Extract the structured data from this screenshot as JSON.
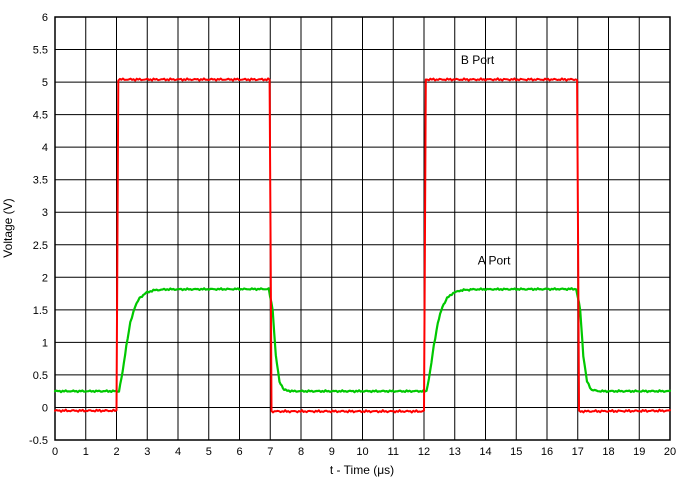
{
  "figure": {
    "background": "#ffffff",
    "text_color": "#000000"
  },
  "chart_data": {
    "type": "line",
    "title": "",
    "xlabel": "t - Time (μs)",
    "ylabel": "Voltage (V)",
    "xlim": [
      0,
      20
    ],
    "ylim": [
      -0.5,
      6
    ],
    "xtick_step": 1,
    "ytick_step": 0.5,
    "grid": true,
    "grid_color": "#000000",
    "frame_color": "#000000",
    "legend_position": "none",
    "series": [
      {
        "name": "A Port",
        "color": "#00c800",
        "width": 2.2,
        "noise": 0.012,
        "high_level": 1.82,
        "low_level": 0.25,
        "points": [
          [
            0,
            0.25
          ],
          [
            2.08,
            0.25
          ],
          [
            2.2,
            0.55
          ],
          [
            2.32,
            0.95
          ],
          [
            2.45,
            1.3
          ],
          [
            2.6,
            1.55
          ],
          [
            2.75,
            1.68
          ],
          [
            2.95,
            1.76
          ],
          [
            3.2,
            1.8
          ],
          [
            3.6,
            1.815
          ],
          [
            6.95,
            1.82
          ],
          [
            7.08,
            1.5
          ],
          [
            7.18,
            0.8
          ],
          [
            7.3,
            0.4
          ],
          [
            7.45,
            0.27
          ],
          [
            7.7,
            0.25
          ],
          [
            12.08,
            0.25
          ],
          [
            12.2,
            0.55
          ],
          [
            12.32,
            0.95
          ],
          [
            12.45,
            1.3
          ],
          [
            12.6,
            1.55
          ],
          [
            12.75,
            1.68
          ],
          [
            12.95,
            1.76
          ],
          [
            13.2,
            1.8
          ],
          [
            13.6,
            1.815
          ],
          [
            16.95,
            1.82
          ],
          [
            17.08,
            1.5
          ],
          [
            17.18,
            0.8
          ],
          [
            17.3,
            0.4
          ],
          [
            17.45,
            0.27
          ],
          [
            17.7,
            0.25
          ],
          [
            20,
            0.25
          ]
        ]
      },
      {
        "name": "B Port",
        "color": "#ff0000",
        "width": 2,
        "noise": 0.015,
        "high_level": 5.04,
        "low_level": -0.05,
        "points": [
          [
            0,
            -0.05
          ],
          [
            2.0,
            -0.05
          ],
          [
            2.06,
            5.04
          ],
          [
            6.98,
            5.04
          ],
          [
            7.04,
            -0.06
          ],
          [
            12.0,
            -0.06
          ],
          [
            12.06,
            5.04
          ],
          [
            16.98,
            5.04
          ],
          [
            17.04,
            -0.06
          ],
          [
            20,
            -0.05
          ]
        ]
      }
    ],
    "annotations": [
      {
        "text": "B Port",
        "x": 13.2,
        "y": 5.28
      },
      {
        "text": "A Port",
        "x": 13.75,
        "y": 2.2
      }
    ]
  }
}
